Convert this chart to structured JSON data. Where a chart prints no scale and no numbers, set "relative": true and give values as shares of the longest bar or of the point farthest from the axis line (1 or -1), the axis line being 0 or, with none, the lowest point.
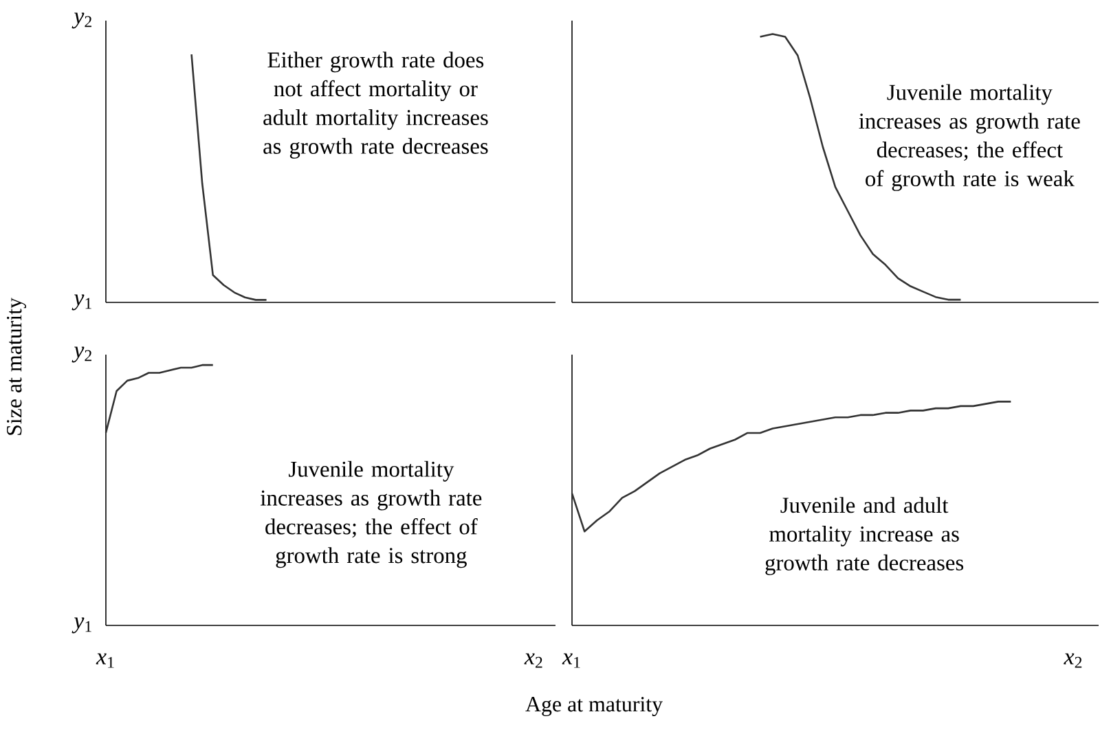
{
  "chart_data": [
    {
      "type": "line",
      "ylabel": "Size at maturity",
      "relative": true,
      "marker": "none",
      "line_style": "solid",
      "categories": [
        null,
        null,
        null,
        null,
        null,
        null,
        null,
        null,
        null,
        null,
        null,
        null,
        null,
        null,
        null,
        null,
        null,
        null,
        null,
        null,
        null,
        null,
        null,
        null,
        null,
        null,
        null,
        null,
        null,
        null,
        null,
        null,
        null,
        null,
        null,
        null,
        null,
        null,
        null,
        null,
        null,
        null,
        null
      ],
      "series": [
        {
          "color": "#333333",
          "values": [
            null,
            null,
            null,
            null,
            null,
            null,
            null,
            null,
            1.0,
            0.48,
            0.11,
            0.07,
            0.04,
            0.02,
            0.01,
            0.01,
            null,
            null,
            null,
            null,
            null,
            null,
            null,
            null,
            null,
            null,
            null,
            null,
            null,
            null,
            null,
            null,
            null,
            null,
            null,
            null,
            null,
            null,
            null,
            null,
            null,
            null,
            null
          ]
        }
      ],
      "annotations": [
        "Either growth rate does not affect mortality or adult mortality increases as growth rate decreases",
        "*y*$_{2}$",
        "*y*$_{1}$"
      ]
    },
    {
      "type": "line",
      "relative": true,
      "marker": "none",
      "line_style": "solid",
      "categories": [
        null,
        null,
        null,
        null,
        null,
        null,
        null,
        null,
        null,
        null,
        null,
        null,
        null,
        null,
        null,
        null,
        null,
        null,
        null,
        null,
        null,
        null,
        null,
        null,
        null,
        null,
        null,
        null,
        null,
        null,
        null,
        null,
        null,
        null,
        null,
        null,
        null,
        null,
        null,
        null,
        null,
        null,
        null
      ],
      "series": [
        {
          "color": "#333333",
          "values": [
            null,
            null,
            null,
            null,
            null,
            null,
            null,
            null,
            null,
            null,
            null,
            null,
            null,
            null,
            null,
            0.99,
            1.0,
            0.99,
            0.92,
            0.76,
            0.58,
            0.43,
            0.34,
            0.25,
            0.18,
            0.14,
            0.09,
            0.06,
            0.04,
            0.02,
            0.01,
            0.01,
            null,
            null,
            null,
            null,
            null,
            null,
            null,
            null,
            null,
            null,
            null
          ]
        }
      ],
      "annotations": [
        "Juvenile mortality increases as growth rate decreases; the effect of growth rate is weak"
      ]
    },
    {
      "type": "line",
      "relative": true,
      "marker": "none",
      "line_style": "solid",
      "categories": [
        null,
        null,
        null,
        null,
        null,
        null,
        null,
        null,
        null,
        null,
        null,
        null,
        null,
        null,
        null,
        null,
        null,
        null,
        null,
        null,
        null,
        null,
        null,
        null,
        null,
        null,
        null,
        null,
        null,
        null,
        null,
        null,
        null,
        null,
        null,
        null,
        null,
        null,
        null,
        null,
        null,
        null,
        null
      ],
      "series": [
        {
          "color": "#333333",
          "values": [
            0.74,
            0.9,
            0.94,
            0.95,
            0.97,
            0.97,
            0.98,
            0.99,
            0.99,
            1.0,
            1.0,
            null,
            null,
            null,
            null,
            null,
            null,
            null,
            null,
            null,
            null,
            null,
            null,
            null,
            null,
            null,
            null,
            null,
            null,
            null,
            null,
            null,
            null,
            null,
            null,
            null,
            null,
            null,
            null,
            null,
            null,
            null,
            null
          ]
        }
      ],
      "annotations": [
        "Juvenile mortality increases as growth rate decreases; the effect of growth rate is strong",
        "*y*$_{2}$",
        "*y*$_{1}$",
        "*x*$_{1}$",
        "*x*$_{2}$"
      ]
    },
    {
      "type": "line",
      "xlabel": "Age at maturity",
      "relative": true,
      "marker": "none",
      "line_style": "solid",
      "categories": [
        null,
        null,
        null,
        null,
        null,
        null,
        null,
        null,
        null,
        null,
        null,
        null,
        null,
        null,
        null,
        null,
        null,
        null,
        null,
        null,
        null,
        null,
        null,
        null,
        null,
        null,
        null,
        null,
        null,
        null,
        null,
        null,
        null,
        null,
        null,
        null,
        null,
        null,
        null,
        null,
        null,
        null,
        null
      ],
      "series": [
        {
          "color": "#333333",
          "values": [
            0.59,
            0.42,
            0.47,
            0.51,
            0.57,
            0.6,
            0.64,
            0.68,
            0.71,
            0.74,
            0.76,
            0.79,
            0.81,
            0.83,
            0.86,
            0.86,
            0.88,
            0.89,
            0.9,
            0.91,
            0.92,
            0.93,
            0.93,
            0.94,
            0.94,
            0.95,
            0.95,
            0.96,
            0.96,
            0.97,
            0.97,
            0.98,
            0.98,
            0.99,
            1.0,
            1.0,
            null,
            null,
            null,
            null,
            null,
            null,
            null
          ]
        }
      ],
      "annotations": [
        "Juvenile and adult mortality increase as growth rate decreases",
        "*x*$_{1}$",
        "*x*$_{2}$"
      ]
    }
  ]
}
